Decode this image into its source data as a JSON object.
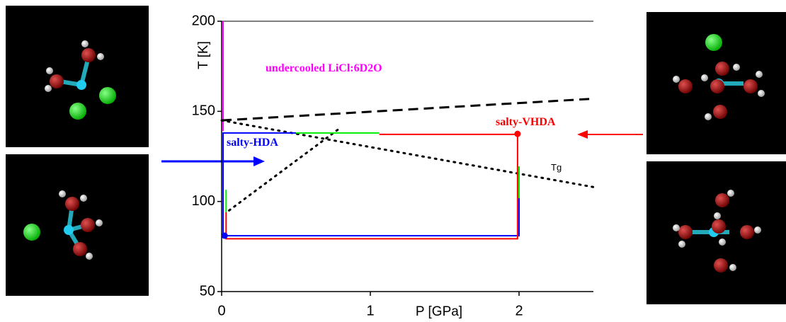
{
  "chart_data": {
    "type": "line",
    "xlabel": "P [GPa]",
    "ylabel": "T [K]",
    "xlim": [
      0,
      2.5
    ],
    "ylim": [
      50,
      200
    ],
    "xticks": [
      0,
      1,
      2
    ],
    "yticks": [
      50,
      100,
      150,
      200
    ],
    "series": [
      {
        "color": "#ff00ff",
        "style": "solid",
        "x": [
          0.01,
          0.01
        ],
        "values": [
          200,
          139
        ]
      },
      {
        "color": "#000000",
        "style": "dashed",
        "x": [
          0,
          2.5
        ],
        "values": [
          145,
          157
        ]
      },
      {
        "color": "#000000",
        "style": "dotted",
        "x": [
          0,
          2.5
        ],
        "values": [
          145,
          108
        ]
      },
      {
        "color": "#000000",
        "style": "dotted",
        "x": [
          0.05,
          0.8
        ],
        "values": [
          95,
          141
        ]
      },
      {
        "color": "#0000ff",
        "style": "solid",
        "x": [
          0.5,
          0.01,
          0.01,
          2.0,
          2.0
        ],
        "values": [
          138,
          138,
          81,
          81,
          102
        ]
      },
      {
        "color": "#ff0000",
        "style": "solid",
        "x": [
          1.06,
          1.99,
          1.99,
          0.03,
          0.03
        ],
        "values": [
          137.2,
          137.2,
          79.3,
          79.3,
          94
        ]
      },
      {
        "color": "#00ee00",
        "style": "solid",
        "x": [
          0.5,
          1.06,
          null,
          2.0,
          2.0,
          null,
          0.03,
          0.03
        ],
        "values": [
          138,
          138,
          null,
          119.5,
          101.8,
          null,
          106.5,
          94
        ]
      }
    ],
    "points": [
      {
        "color": "#ff0000",
        "x": 1.99,
        "value": 137.5
      },
      {
        "color": "#0000ff",
        "x": 0.02,
        "value": 81
      }
    ],
    "annotations": [
      "undercooled LiCl:6D2O",
      "salty-VHDA",
      "salty-HDA",
      "Tg"
    ]
  }
}
